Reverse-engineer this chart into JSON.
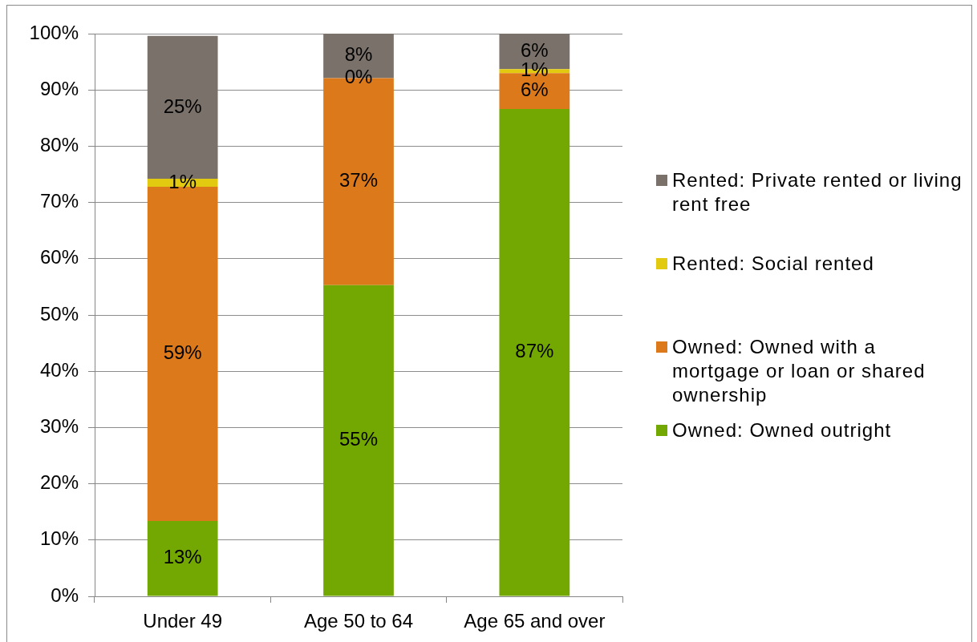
{
  "chart_data": {
    "type": "bar",
    "stacked": true,
    "categories": [
      "Under 49",
      "Age 50 to 64",
      "Age 65 and over"
    ],
    "series": [
      {
        "name": "Owned: Owned outright",
        "color": "#73a802",
        "values": [
          13.4,
          55.3,
          86.6
        ],
        "value_labels": [
          "13%",
          "55%",
          "87%"
        ]
      },
      {
        "name": "Owned: Owned with a mortgage or loan or shared ownership",
        "color": "#dc7a1b",
        "values": [
          59.4,
          36.8,
          6.4
        ],
        "value_labels": [
          "59%",
          "37%",
          "6%"
        ]
      },
      {
        "name": "Rented: Social rented",
        "color": "#e2ca10",
        "values": [
          1.4,
          0,
          0.7
        ],
        "value_labels": [
          "1%",
          "0%",
          "1%"
        ]
      },
      {
        "name": "Rented: Private rented or living rent free",
        "color": "#7a716a",
        "values": [
          25.4,
          7.9,
          6.3
        ],
        "value_labels": [
          "25%",
          "8%",
          "6%"
        ]
      }
    ],
    "ylim": [
      0,
      100
    ],
    "yticks": [
      {
        "value": 0,
        "label": "0%"
      },
      {
        "value": 10,
        "label": "10%"
      },
      {
        "value": 20,
        "label": "20%"
      },
      {
        "value": 30,
        "label": "30%"
      },
      {
        "value": 40,
        "label": "40%"
      },
      {
        "value": 50,
        "label": "50%"
      },
      {
        "value": 60,
        "label": "60%"
      },
      {
        "value": 70,
        "label": "70%"
      },
      {
        "value": 80,
        "label": "80%"
      },
      {
        "value": 90,
        "label": "90%"
      },
      {
        "value": 100,
        "label": "100%"
      }
    ],
    "grid": "y",
    "legend": "right"
  }
}
